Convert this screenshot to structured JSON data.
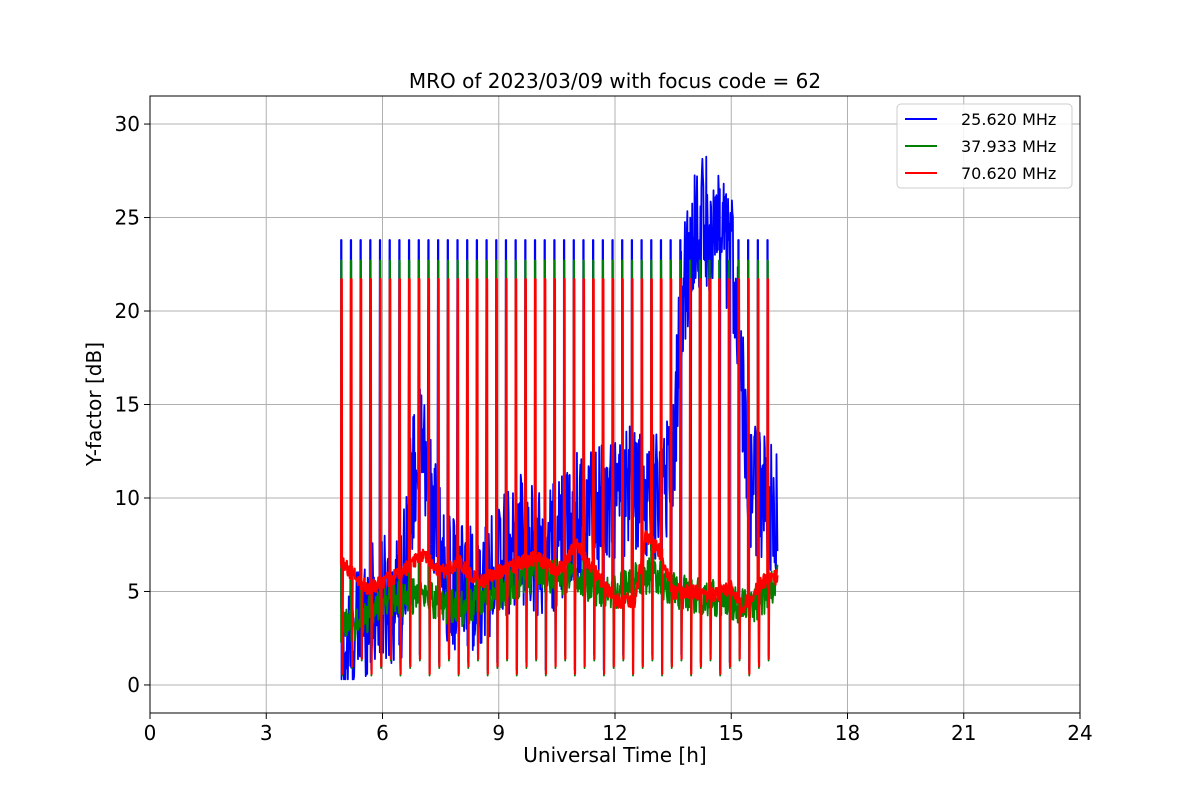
{
  "chart_data": {
    "type": "line",
    "title": "MRO of 2023/03/09 with focus code = 62",
    "xlabel": "Universal Time [h]",
    "ylabel": "Y-factor [dB]",
    "xlim": [
      0,
      24
    ],
    "ylim": [
      -1.5,
      31.5
    ],
    "xticks": [
      0,
      3,
      6,
      9,
      12,
      15,
      18,
      21,
      24
    ],
    "yticks": [
      0,
      5,
      10,
      15,
      20,
      25,
      30
    ],
    "grid": true,
    "legend_position": "top-right",
    "sweep": {
      "start_h": 4.93,
      "end_h": 16.05,
      "period_h": 0.25
    },
    "series": [
      {
        "name": "25.620 MHz",
        "color": "#0000ff",
        "spike_peak": 23.8,
        "spike_floor": 0.8,
        "baseline": [
          [
            4.95,
            1.5
          ],
          [
            5.2,
            2.2
          ],
          [
            5.6,
            4.0
          ],
          [
            6.0,
            4.5
          ],
          [
            6.5,
            4.8
          ],
          [
            6.7,
            10.0
          ],
          [
            7.0,
            13.0
          ],
          [
            7.3,
            9.0
          ],
          [
            7.6,
            6.0
          ],
          [
            8.0,
            5.0
          ],
          [
            8.5,
            5.5
          ],
          [
            9.0,
            6.5
          ],
          [
            9.5,
            8.0
          ],
          [
            10.0,
            7.0
          ],
          [
            10.5,
            7.5
          ],
          [
            11.0,
            9.0
          ],
          [
            11.5,
            9.5
          ],
          [
            12.0,
            10.0
          ],
          [
            12.5,
            10.5
          ],
          [
            13.0,
            10.0
          ],
          [
            13.5,
            12.0
          ],
          [
            13.7,
            20.0
          ],
          [
            14.0,
            24.0
          ],
          [
            14.3,
            25.0
          ],
          [
            14.6,
            24.0
          ],
          [
            15.0,
            23.0
          ],
          [
            15.2,
            20.0
          ],
          [
            15.4,
            11.0
          ],
          [
            15.8,
            10.0
          ],
          [
            16.2,
            9.0
          ]
        ],
        "baseline_amplitude": 3.5
      },
      {
        "name": "37.933 MHz",
        "color": "#008000",
        "spike_peak": 22.7,
        "spike_floor": 0.5,
        "baseline": [
          [
            4.95,
            3.0
          ],
          [
            5.5,
            3.5
          ],
          [
            6.0,
            4.5
          ],
          [
            7.0,
            4.8
          ],
          [
            8.0,
            4.0
          ],
          [
            9.0,
            5.0
          ],
          [
            10.0,
            6.0
          ],
          [
            11.0,
            5.5
          ],
          [
            12.0,
            5.0
          ],
          [
            13.0,
            6.0
          ],
          [
            13.5,
            5.0
          ],
          [
            14.0,
            4.8
          ],
          [
            15.0,
            4.5
          ],
          [
            15.5,
            4.0
          ],
          [
            16.2,
            5.5
          ]
        ],
        "baseline_amplitude": 1.0
      },
      {
        "name": "70.620 MHz",
        "color": "#ff0000",
        "spike_peak": 21.7,
        "spike_floor": 0.6,
        "baseline": [
          [
            4.95,
            6.5
          ],
          [
            5.2,
            6.0
          ],
          [
            5.6,
            5.2
          ],
          [
            6.0,
            5.5
          ],
          [
            6.5,
            6.0
          ],
          [
            7.0,
            7.0
          ],
          [
            7.5,
            6.0
          ],
          [
            8.0,
            6.5
          ],
          [
            8.5,
            5.5
          ],
          [
            9.0,
            6.0
          ],
          [
            9.5,
            6.5
          ],
          [
            10.0,
            6.8
          ],
          [
            10.5,
            6.0
          ],
          [
            11.0,
            7.5
          ],
          [
            11.5,
            6.0
          ],
          [
            12.0,
            4.5
          ],
          [
            12.5,
            4.5
          ],
          [
            12.8,
            8.0
          ],
          [
            13.2,
            7.0
          ],
          [
            13.5,
            5.0
          ],
          [
            14.0,
            5.0
          ],
          [
            14.5,
            4.8
          ],
          [
            15.0,
            5.2
          ],
          [
            15.3,
            4.2
          ],
          [
            15.8,
            5.5
          ],
          [
            16.2,
            5.8
          ]
        ],
        "baseline_amplitude": 0.4
      }
    ]
  }
}
